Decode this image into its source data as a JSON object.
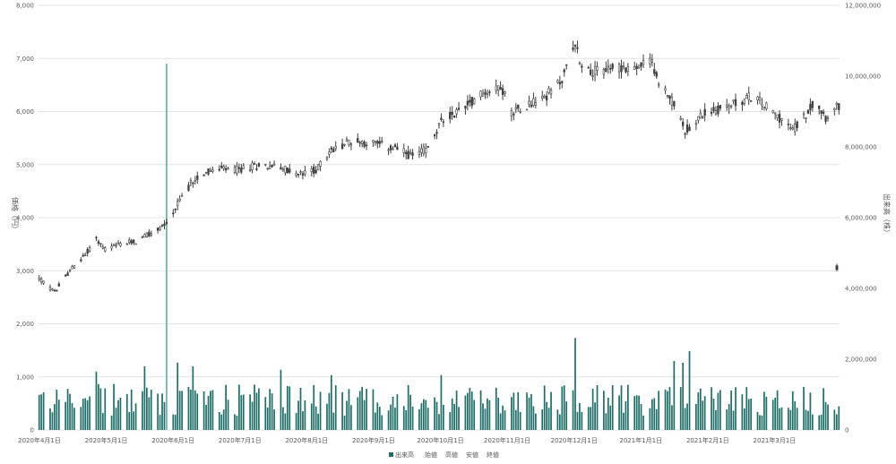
{
  "chart_data": {
    "type": "candlestick",
    "subtypes": [
      "candlestick",
      "bar"
    ],
    "left_axis": {
      "title": "価格（円）",
      "ticks": [
        "0",
        "1,000",
        "2,000",
        "3,000",
        "4,000",
        "5,000",
        "6,000",
        "7,000",
        "8,000"
      ],
      "range": [
        0,
        8000
      ]
    },
    "right_axis": {
      "title": "出来高（株）",
      "ticks": [
        "0",
        "2,000,000",
        "4,000,000",
        "6,000,000",
        "8,000,000",
        "10,000,000",
        "12,000,000"
      ],
      "range": [
        0,
        12000000
      ]
    },
    "x_axis": {
      "labels": [
        "2020年4月1日",
        "2020年5月1日",
        "2020年6月1日",
        "2020年7月1日",
        "2020年8月1日",
        "2020年9月1日",
        "2020年10月1日",
        "2020年11月1日",
        "2020年12月1日",
        "2021年1月1日",
        "2021年2月1日",
        "2021年3月1日"
      ],
      "start": "2020-04-01",
      "end": "2021-04-01"
    },
    "legend": {
      "position": "bottom",
      "items": [
        "出来高",
        "始値",
        "高値",
        "安値",
        "終値"
      ]
    },
    "grid": true,
    "price_anchors": [
      [
        "2020-04-01",
        2850
      ],
      [
        "2020-04-08",
        2600
      ],
      [
        "2020-04-15",
        3000
      ],
      [
        "2020-04-22",
        3300
      ],
      [
        "2020-04-27",
        3600
      ],
      [
        "2020-05-01",
        3400
      ],
      [
        "2020-05-08",
        3500
      ],
      [
        "2020-05-15",
        3550
      ],
      [
        "2020-05-22",
        3700
      ],
      [
        "2020-05-29",
        3900
      ],
      [
        "2020-06-01",
        4100
      ],
      [
        "2020-06-05",
        4400
      ],
      [
        "2020-06-10",
        4700
      ],
      [
        "2020-06-15",
        4850
      ],
      [
        "2020-06-22",
        4900
      ],
      [
        "2020-07-01",
        4900
      ],
      [
        "2020-07-10",
        5000
      ],
      [
        "2020-07-20",
        4950
      ],
      [
        "2020-07-28",
        4800
      ],
      [
        "2020-08-05",
        4900
      ],
      [
        "2020-08-12",
        5250
      ],
      [
        "2020-08-20",
        5450
      ],
      [
        "2020-08-31",
        5400
      ],
      [
        "2020-09-10",
        5300
      ],
      [
        "2020-09-18",
        5150
      ],
      [
        "2020-09-25",
        5300
      ],
      [
        "2020-10-01",
        5800
      ],
      [
        "2020-10-10",
        6050
      ],
      [
        "2020-10-20",
        6350
      ],
      [
        "2020-10-28",
        6500
      ],
      [
        "2020-11-02",
        6000
      ],
      [
        "2020-11-10",
        6150
      ],
      [
        "2020-11-18",
        6300
      ],
      [
        "2020-11-25",
        6600
      ],
      [
        "2020-12-01",
        7300
      ],
      [
        "2020-12-04",
        6850
      ],
      [
        "2020-12-10",
        6750
      ],
      [
        "2020-12-20",
        6850
      ],
      [
        "2020-12-28",
        6800
      ],
      [
        "2021-01-05",
        6950
      ],
      [
        "2021-01-08",
        6500
      ],
      [
        "2021-01-13",
        6300
      ],
      [
        "2021-01-20",
        5650
      ],
      [
        "2021-01-28",
        5950
      ],
      [
        "2021-02-05",
        6050
      ],
      [
        "2021-02-12",
        6150
      ],
      [
        "2021-02-20",
        6300
      ],
      [
        "2021-02-27",
        6050
      ],
      [
        "2021-03-05",
        5850
      ],
      [
        "2021-03-10",
        5650
      ],
      [
        "2021-03-15",
        5900
      ],
      [
        "2021-03-20",
        6200
      ],
      [
        "2021-03-25",
        5900
      ],
      [
        "2021-03-31",
        6100
      ]
    ],
    "price_tail": [
      [
        "2021-03-31",
        3050
      ]
    ],
    "volume_range": [
      400000,
      1300000
    ],
    "volume_spikes": [
      [
        "2020-05-29",
        10350000
      ],
      [
        "2020-12-01",
        2600000
      ],
      [
        "2021-01-22",
        2230000
      ],
      [
        "2021-01-15",
        1950000
      ],
      [
        "2021-01-19",
        1900000
      ],
      [
        "2020-06-03",
        1900000
      ],
      [
        "2020-06-10",
        1800000
      ],
      [
        "2020-05-19",
        1800000
      ],
      [
        "2020-04-27",
        1650000
      ],
      [
        "2020-07-20",
        1700000
      ],
      [
        "2020-08-12",
        1550000
      ],
      [
        "2020-10-01",
        1550000
      ]
    ]
  },
  "colors": {
    "volume_bar": "#1f6f68",
    "volume_bar_light": "#64b3a6",
    "candle": "#404040",
    "grid": "#e3e3e3",
    "text": "#595959",
    "legend_volume": "#1f6f68"
  }
}
